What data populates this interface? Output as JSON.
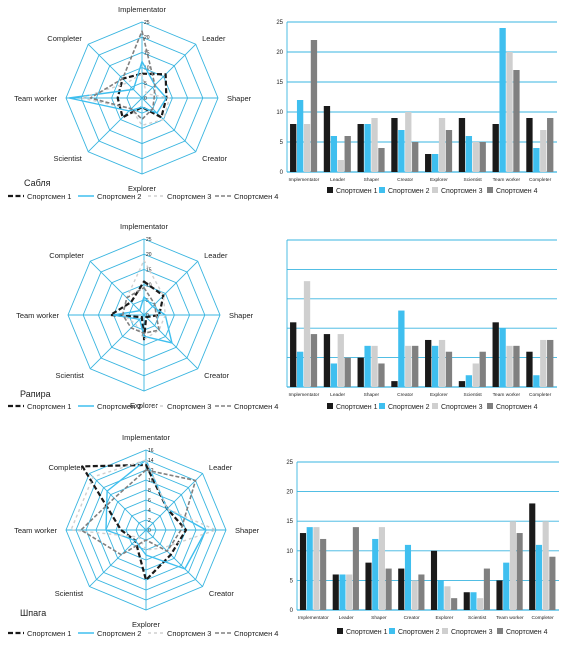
{
  "athletes": [
    "Спортсмен 1",
    "Спортсмен 2",
    "Спортсмен 3",
    "Спортсмен 4"
  ],
  "series_colors": [
    "#1a1a1a",
    "#3fbfef",
    "#cfcfcf",
    "#808080"
  ],
  "grid_color": "#39b5e0",
  "chart_data": [
    {
      "type": "radar",
      "section": "Сабля",
      "axes": [
        "Implementator",
        "Leader",
        "Shaper",
        "Creator",
        "Explorer",
        "Scientist",
        "Team worker",
        "Completer"
      ],
      "rmax": 25,
      "ticks": [
        "25",
        "20",
        "15",
        "10",
        "5",
        "0"
      ],
      "series": [
        {
          "name": "Спортсмен 1",
          "values": [
            8,
            11,
            8,
            9,
            3,
            9,
            8,
            9
          ]
        },
        {
          "name": "Спортсмен 2",
          "values": [
            12,
            6,
            8,
            7,
            3,
            6,
            24,
            4
          ]
        },
        {
          "name": "Спортсмен 3",
          "values": [
            8,
            2,
            9,
            10,
            9,
            5,
            20,
            7
          ]
        },
        {
          "name": "Спортсмен 4",
          "values": [
            22,
            6,
            4,
            5,
            7,
            5,
            17,
            9
          ]
        }
      ]
    },
    {
      "type": "bar",
      "section": "Сабля",
      "categories": [
        "Implementator",
        "Leader",
        "Shaper",
        "Creator",
        "Explorer",
        "Scientist",
        "Team worker",
        "Completer"
      ],
      "ylim": [
        0,
        25
      ],
      "yticks": [
        "0",
        "5",
        "10",
        "15",
        "20",
        "25"
      ],
      "series": [
        {
          "name": "Спортсмен 1",
          "values": [
            8,
            11,
            8,
            9,
            3,
            9,
            8,
            9
          ]
        },
        {
          "name": "Спортсмен 2",
          "values": [
            12,
            6,
            8,
            7,
            3,
            6,
            24,
            4
          ]
        },
        {
          "name": "Спортсмен 3",
          "values": [
            8,
            2,
            9,
            10,
            9,
            5,
            20,
            7
          ]
        },
        {
          "name": "Спортсмен 4",
          "values": [
            22,
            6,
            4,
            5,
            7,
            5,
            17,
            9
          ]
        }
      ]
    },
    {
      "type": "radar",
      "section": "Рапира",
      "axes": [
        "Implementator",
        "Leader",
        "Shaper",
        "Creator",
        "Explorer",
        "Scientist",
        "Team worker",
        "Completer"
      ],
      "rmax": 25,
      "ticks": [
        "25",
        "20",
        "15",
        "10",
        "5",
        "0"
      ],
      "series": [
        {
          "name": "Спортсмен 1",
          "values": [
            11,
            9,
            5,
            1,
            8,
            1,
            11,
            6
          ]
        },
        {
          "name": "Спортсмен 2",
          "values": [
            6,
            4,
            7,
            13,
            7,
            2,
            10,
            2
          ]
        },
        {
          "name": "Спортсмен 3",
          "values": [
            18,
            9,
            7,
            7,
            8,
            4,
            7,
            8
          ]
        },
        {
          "name": "Спортсмен 4",
          "values": [
            9,
            5,
            4,
            7,
            6,
            6,
            7,
            8
          ]
        }
      ]
    },
    {
      "type": "bar",
      "section": "Рапира",
      "categories": [
        "Implementator",
        "Leader",
        "Shaper",
        "Creator",
        "Explorer",
        "Scientist",
        "Team worker",
        "Completer"
      ],
      "ylim": [
        0,
        25
      ],
      "yticks": [],
      "series": [
        {
          "name": "Спортсмен 1",
          "values": [
            11,
            9,
            5,
            1,
            8,
            1,
            11,
            6
          ]
        },
        {
          "name": "Спортсмен 2",
          "values": [
            6,
            4,
            7,
            13,
            7,
            2,
            10,
            2
          ]
        },
        {
          "name": "Спортсмен 3",
          "values": [
            18,
            9,
            7,
            7,
            8,
            4,
            7,
            8
          ]
        },
        {
          "name": "Спортсмен 4",
          "values": [
            9,
            5,
            4,
            7,
            6,
            6,
            7,
            8
          ]
        }
      ]
    },
    {
      "type": "radar",
      "section": "Шпага",
      "axes": [
        "Implementator",
        "Leader",
        "Shaper",
        "Creator",
        "Explorer",
        "Scientist",
        "Team worker",
        "Completer"
      ],
      "rmax": 16,
      "ticks": [
        "16",
        "14",
        "12",
        "10",
        "8",
        "6",
        "4",
        "2",
        "0"
      ],
      "series": [
        {
          "name": "Спортсмен 1",
          "values": [
            13,
            6,
            8,
            7,
            10,
            3,
            5,
            18
          ]
        },
        {
          "name": "Спортсмен 2",
          "values": [
            14,
            6,
            12,
            11,
            5,
            3,
            8,
            11
          ]
        },
        {
          "name": "Спортсмен 3",
          "values": [
            14,
            6,
            14,
            5,
            4,
            2,
            15,
            15
          ]
        },
        {
          "name": "Спортсмен 4",
          "values": [
            12,
            14,
            7,
            6,
            2,
            7,
            13,
            9
          ]
        }
      ]
    },
    {
      "type": "bar",
      "section": "Шпага",
      "categories": [
        "Implementator",
        "Leader",
        "Shaper",
        "Creator",
        "Explorer",
        "Scientist",
        "Team worker",
        "Completer"
      ],
      "ylim": [
        0,
        25
      ],
      "yticks": [
        "0",
        "5",
        "10",
        "15",
        "20",
        "25"
      ],
      "series": [
        {
          "name": "Спортсмен 1",
          "values": [
            13,
            6,
            8,
            7,
            10,
            3,
            5,
            18
          ]
        },
        {
          "name": "Спортсмен 2",
          "values": [
            14,
            6,
            12,
            11,
            5,
            3,
            8,
            11
          ]
        },
        {
          "name": "Спортсмен 3",
          "values": [
            14,
            6,
            14,
            5,
            4,
            2,
            15,
            15
          ]
        },
        {
          "name": "Спортсмен 4",
          "values": [
            12,
            14,
            7,
            6,
            2,
            7,
            13,
            9
          ]
        }
      ]
    }
  ]
}
